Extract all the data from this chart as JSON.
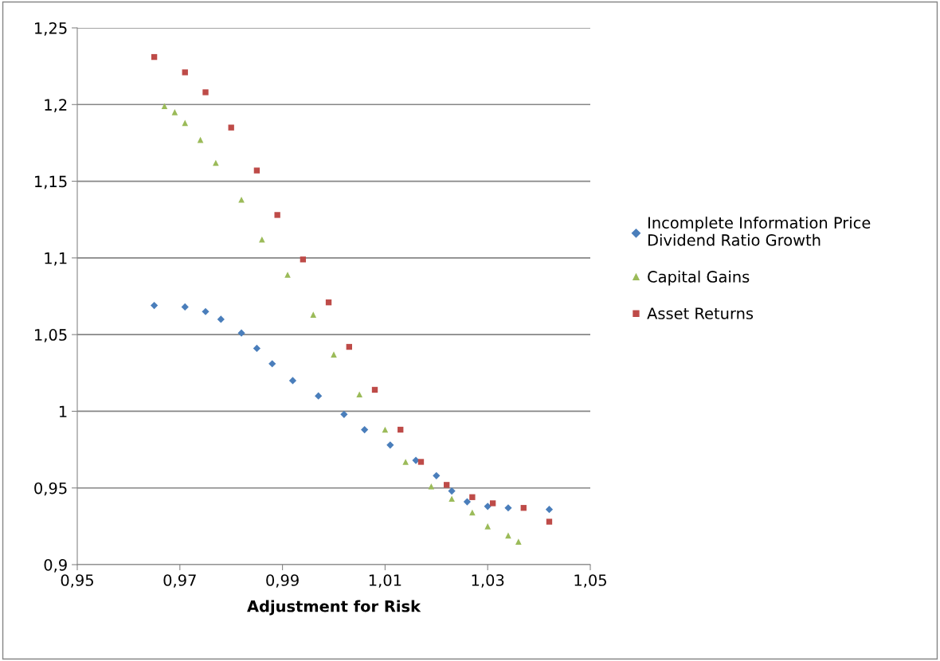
{
  "chart_data": {
    "type": "scatter",
    "xlabel": "Adjustment for Risk",
    "xlim": [
      0.95,
      1.05
    ],
    "ylim": [
      0.9,
      1.25
    ],
    "xticks": [
      {
        "value": 0.95,
        "label": "0,95"
      },
      {
        "value": 0.97,
        "label": "0,97"
      },
      {
        "value": 0.99,
        "label": "0,99"
      },
      {
        "value": 1.01,
        "label": "1,01"
      },
      {
        "value": 1.03,
        "label": "1,03"
      },
      {
        "value": 1.05,
        "label": "1,05"
      }
    ],
    "yticks": [
      {
        "value": 0.9,
        "label": "0,9"
      },
      {
        "value": 0.95,
        "label": "0,95"
      },
      {
        "value": 1.0,
        "label": "1"
      },
      {
        "value": 1.05,
        "label": "1,05"
      },
      {
        "value": 1.1,
        "label": "1,1"
      },
      {
        "value": 1.15,
        "label": "1,15"
      },
      {
        "value": 1.2,
        "label": "1,2"
      },
      {
        "value": 1.25,
        "label": "1,25"
      }
    ],
    "grid": "y",
    "legend": "right",
    "series": [
      {
        "name": "Incomplete Information Price Dividend Ratio Growth",
        "color": "#4a7ebb",
        "marker": "diamond",
        "x": [
          0.965,
          0.971,
          0.975,
          0.978,
          0.982,
          0.985,
          0.988,
          0.992,
          0.997,
          1.002,
          1.006,
          1.011,
          1.016,
          1.02,
          1.023,
          1.026,
          1.03,
          1.034,
          1.037,
          1.042
        ],
        "values": [
          1.069,
          1.068,
          1.065,
          1.06,
          1.051,
          1.041,
          1.031,
          1.02,
          1.01,
          0.998,
          0.988,
          0.978,
          0.968,
          0.958,
          0.948,
          0.941,
          0.938,
          0.937,
          null,
          0.936
        ]
      },
      {
        "name": "Capital Gains",
        "color": "#9bbb59",
        "marker": "triangle",
        "x": [
          0.967,
          0.969,
          0.971,
          0.974,
          0.977,
          0.982,
          0.986,
          0.991,
          0.996,
          1.0,
          1.005,
          1.01,
          1.014,
          1.019,
          1.023,
          1.027,
          1.03,
          1.034,
          1.036
        ],
        "values": [
          1.199,
          1.195,
          1.188,
          1.177,
          1.162,
          1.138,
          1.112,
          1.089,
          1.063,
          1.037,
          1.011,
          0.988,
          0.967,
          0.951,
          0.943,
          0.934,
          0.925,
          0.919,
          0.915
        ]
      },
      {
        "name": "Asset Returns",
        "color": "#be4b48",
        "marker": "square",
        "x": [
          0.965,
          0.971,
          0.975,
          0.98,
          0.985,
          0.989,
          0.994,
          0.999,
          1.003,
          1.008,
          1.013,
          1.017,
          1.022,
          1.027,
          1.031,
          1.037,
          1.042
        ],
        "values": [
          1.231,
          1.221,
          1.208,
          1.185,
          1.157,
          1.128,
          1.099,
          1.071,
          1.042,
          1.014,
          0.988,
          0.967,
          0.952,
          0.944,
          0.94,
          0.937,
          0.928
        ]
      }
    ]
  }
}
